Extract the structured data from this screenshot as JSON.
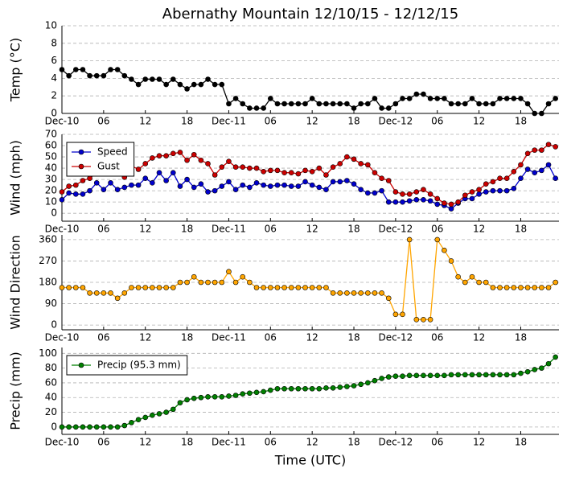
{
  "chart_data": [
    {
      "type": "line",
      "title": "Abernathy Mountain 12/10/15 - 12/12/15",
      "ylabel": "Temp ($^\\circ$C)",
      "x": [
        0,
        1,
        2,
        3,
        4,
        5,
        6,
        7,
        8,
        9,
        10,
        11,
        12,
        13,
        14,
        15,
        16,
        17,
        18,
        19,
        20,
        21,
        22,
        23,
        24,
        25,
        26,
        27,
        28,
        29,
        30,
        31,
        32,
        33,
        34,
        35,
        36,
        37,
        38,
        39,
        40,
        41,
        42,
        43,
        44,
        45,
        46,
        47,
        48,
        49,
        50,
        51,
        52,
        53,
        54,
        55,
        56,
        57,
        58,
        59,
        60,
        61,
        62,
        63,
        64,
        65,
        66,
        67,
        68,
        69,
        70,
        71
      ],
      "xlim": [
        0,
        71.5
      ],
      "xticks": [
        {
          "value": 0,
          "label": "Dec-10"
        },
        {
          "value": 6,
          "label": "06"
        },
        12,
        18,
        {
          "value": 24,
          "label": "Dec-11"
        },
        {
          "value": 30,
          "label": "06"
        },
        {
          "value": 36,
          "label": "12"
        },
        {
          "value": 42,
          "label": "18"
        },
        {
          "value": 48,
          "label": "Dec-12"
        },
        {
          "value": 54,
          "label": "06"
        },
        {
          "value": 60,
          "label": "12"
        },
        {
          "value": 66,
          "label": "18"
        }
      ],
      "ylim": [
        0,
        10
      ],
      "yticks": [
        0,
        2,
        4,
        6,
        8,
        10
      ],
      "grid": true,
      "series": [
        {
          "color": "#000000",
          "values": [
            5,
            4.3,
            5,
            5,
            4.3,
            4.3,
            4.3,
            5,
            5,
            4.3,
            3.9,
            3.3,
            3.9,
            3.9,
            3.9,
            3.3,
            3.9,
            3.3,
            2.8,
            3.3,
            3.3,
            3.9,
            3.3,
            3.3,
            1.1,
            1.7,
            1.1,
            0.6,
            0.6,
            0.6,
            1.7,
            1.1,
            1.1,
            1.1,
            1.1,
            1.1,
            1.7,
            1.1,
            1.1,
            1.1,
            1.1,
            1.1,
            0.6,
            1.1,
            1.1,
            1.7,
            0.6,
            0.6,
            1.1,
            1.7,
            1.7,
            2.2,
            2.2,
            1.7,
            1.7,
            1.7,
            1.1,
            1.1,
            1.1,
            1.7,
            1.1,
            1.1,
            1.1,
            1.7,
            1.7,
            1.7,
            1.7,
            1.1,
            0,
            0,
            1.1,
            1.7
          ]
        }
      ]
    },
    {
      "type": "line",
      "ylabel": "Wind (mph)",
      "legend": "upper left",
      "x": [
        0,
        1,
        2,
        3,
        4,
        5,
        6,
        7,
        8,
        9,
        10,
        11,
        12,
        13,
        14,
        15,
        16,
        17,
        18,
        19,
        20,
        21,
        22,
        23,
        24,
        25,
        26,
        27,
        28,
        29,
        30,
        31,
        32,
        33,
        34,
        35,
        36,
        37,
        38,
        39,
        40,
        41,
        42,
        43,
        44,
        45,
        46,
        47,
        48,
        49,
        50,
        51,
        52,
        53,
        54,
        55,
        56,
        57,
        58,
        59,
        60,
        61,
        62,
        63,
        64,
        65,
        66,
        67,
        68,
        69,
        70,
        71
      ],
      "xlim": [
        0,
        71.5
      ],
      "xticks": [
        {
          "value": 0,
          "label": "Dec-10"
        },
        {
          "value": 6,
          "label": "06"
        },
        12,
        18,
        {
          "value": 24,
          "label": "Dec-11"
        },
        {
          "value": 30,
          "label": "06"
        },
        {
          "value": 36,
          "label": "12"
        },
        {
          "value": 42,
          "label": "18"
        },
        {
          "value": 48,
          "label": "Dec-12"
        },
        {
          "value": 54,
          "label": "06"
        },
        {
          "value": 60,
          "label": "12"
        },
        {
          "value": 66,
          "label": "18"
        }
      ],
      "ylim": [
        -7,
        70
      ],
      "yticks": [
        0,
        10,
        20,
        30,
        40,
        50,
        60,
        70
      ],
      "grid": true,
      "series": [
        {
          "name": "Speed",
          "color": "#0000cc",
          "values": [
            12,
            18,
            17,
            17,
            20,
            27,
            21,
            27,
            21,
            23,
            25,
            25,
            31,
            27,
            36,
            29,
            36,
            24,
            30,
            23,
            26,
            19,
            20,
            24,
            28,
            21,
            25,
            23,
            27,
            25,
            24,
            25,
            25,
            24,
            24,
            28,
            25,
            23,
            21,
            28,
            28,
            29,
            26,
            21,
            18,
            18,
            20,
            10,
            10,
            10,
            11,
            12,
            12,
            11,
            8,
            7,
            4,
            9,
            13,
            13,
            17,
            19,
            20,
            20,
            20,
            22,
            31,
            39,
            36,
            38,
            43,
            31
          ]
        },
        {
          "name": "Gust",
          "color": "#cc0000",
          "values": [
            19,
            24,
            25,
            29,
            31,
            36,
            40,
            44,
            38,
            32,
            42,
            39,
            44,
            49,
            51,
            51,
            53,
            54,
            47,
            52,
            47,
            44,
            34,
            41,
            46,
            41,
            41,
            40,
            40,
            37,
            38,
            38,
            36,
            36,
            35,
            38,
            37,
            40,
            34,
            41,
            44,
            50,
            48,
            44,
            43,
            36,
            31,
            29,
            19,
            17,
            17,
            19,
            21,
            17,
            13,
            9,
            8,
            10,
            16,
            19,
            21,
            26,
            28,
            31,
            31,
            37,
            43,
            53,
            56,
            56,
            61,
            59
          ]
        }
      ]
    },
    {
      "type": "line",
      "ylabel": "Wind Direction",
      "x": [
        0,
        1,
        2,
        3,
        4,
        5,
        6,
        7,
        8,
        9,
        10,
        11,
        12,
        13,
        14,
        15,
        16,
        17,
        18,
        19,
        20,
        21,
        22,
        23,
        24,
        25,
        26,
        27,
        28,
        29,
        30,
        31,
        32,
        33,
        34,
        35,
        36,
        37,
        38,
        39,
        40,
        41,
        42,
        43,
        44,
        45,
        46,
        47,
        48,
        49,
        50,
        51,
        52,
        53,
        54,
        55,
        56,
        57,
        58,
        59,
        60,
        61,
        62,
        63,
        64,
        65,
        66,
        67,
        68,
        69,
        70,
        71
      ],
      "xlim": [
        0,
        71.5
      ],
      "xticks": [
        {
          "value": 0,
          "label": "Dec-10"
        },
        {
          "value": 6,
          "label": "06"
        },
        12,
        18,
        {
          "value": 24,
          "label": "Dec-11"
        },
        {
          "value": 30,
          "label": "06"
        },
        {
          "value": 36,
          "label": "12"
        },
        {
          "value": 42,
          "label": "18"
        },
        {
          "value": 48,
          "label": "Dec-12"
        },
        {
          "value": 54,
          "label": "06"
        },
        {
          "value": 60,
          "label": "12"
        },
        {
          "value": 66,
          "label": "18"
        }
      ],
      "ylim": [
        -20,
        380
      ],
      "yticks": [
        0,
        90,
        180,
        270,
        360
      ],
      "grid": true,
      "series": [
        {
          "color": "#ffa500",
          "values": [
            158,
            158,
            158,
            158,
            135,
            135,
            135,
            135,
            113,
            135,
            158,
            158,
            158,
            158,
            158,
            158,
            158,
            180,
            180,
            203,
            180,
            180,
            180,
            180,
            225,
            180,
            203,
            180,
            158,
            158,
            158,
            158,
            158,
            158,
            158,
            158,
            158,
            158,
            158,
            135,
            135,
            135,
            135,
            135,
            135,
            135,
            135,
            113,
            45,
            45,
            360,
            23,
            23,
            23,
            360,
            315,
            270,
            203,
            180,
            203,
            180,
            180,
            158,
            158,
            158,
            158,
            158,
            158,
            158,
            158,
            158,
            180
          ]
        }
      ]
    },
    {
      "type": "line",
      "ylabel": "Precip (mm)",
      "xlabel": "Time (UTC)",
      "legend": "upper left",
      "x": [
        0,
        1,
        2,
        3,
        4,
        5,
        6,
        7,
        8,
        9,
        10,
        11,
        12,
        13,
        14,
        15,
        16,
        17,
        18,
        19,
        20,
        21,
        22,
        23,
        24,
        25,
        26,
        27,
        28,
        29,
        30,
        31,
        32,
        33,
        34,
        35,
        36,
        37,
        38,
        39,
        40,
        41,
        42,
        43,
        44,
        45,
        46,
        47,
        48,
        49,
        50,
        51,
        52,
        53,
        54,
        55,
        56,
        57,
        58,
        59,
        60,
        61,
        62,
        63,
        64,
        65,
        66,
        67,
        68,
        69,
        70,
        71
      ],
      "xlim": [
        0,
        71.5
      ],
      "xticks": [
        {
          "value": 0,
          "label": "Dec-10"
        },
        {
          "value": 6,
          "label": "06"
        },
        12,
        18,
        {
          "value": 24,
          "label": "Dec-11"
        },
        {
          "value": 30,
          "label": "06"
        },
        {
          "value": 36,
          "label": "12"
        },
        {
          "value": 42,
          "label": "18"
        },
        {
          "value": 48,
          "label": "Dec-12"
        },
        {
          "value": 54,
          "label": "06"
        },
        {
          "value": 60,
          "label": "12"
        },
        {
          "value": 66,
          "label": "18"
        }
      ],
      "ylim": [
        -10,
        108
      ],
      "yticks": [
        0,
        20,
        40,
        60,
        80,
        100
      ],
      "grid": true,
      "series": [
        {
          "name": "Precip (95.3 mm)",
          "color": "#008000",
          "values": [
            0,
            0,
            0,
            0,
            0,
            0,
            0,
            0,
            0,
            2,
            6,
            10,
            13,
            16,
            18,
            20,
            24,
            33,
            37,
            39,
            40,
            41,
            41,
            41,
            42,
            43,
            45,
            46,
            47,
            48,
            50,
            52,
            52,
            52,
            52,
            52,
            52,
            52,
            53,
            53,
            54,
            55,
            56,
            58,
            60,
            63,
            66,
            68,
            69,
            69,
            70,
            70,
            70,
            70,
            70,
            70,
            71,
            71,
            71,
            71,
            71,
            71,
            71,
            71,
            71,
            71,
            73,
            75,
            78,
            80,
            86,
            95
          ]
        }
      ]
    }
  ]
}
